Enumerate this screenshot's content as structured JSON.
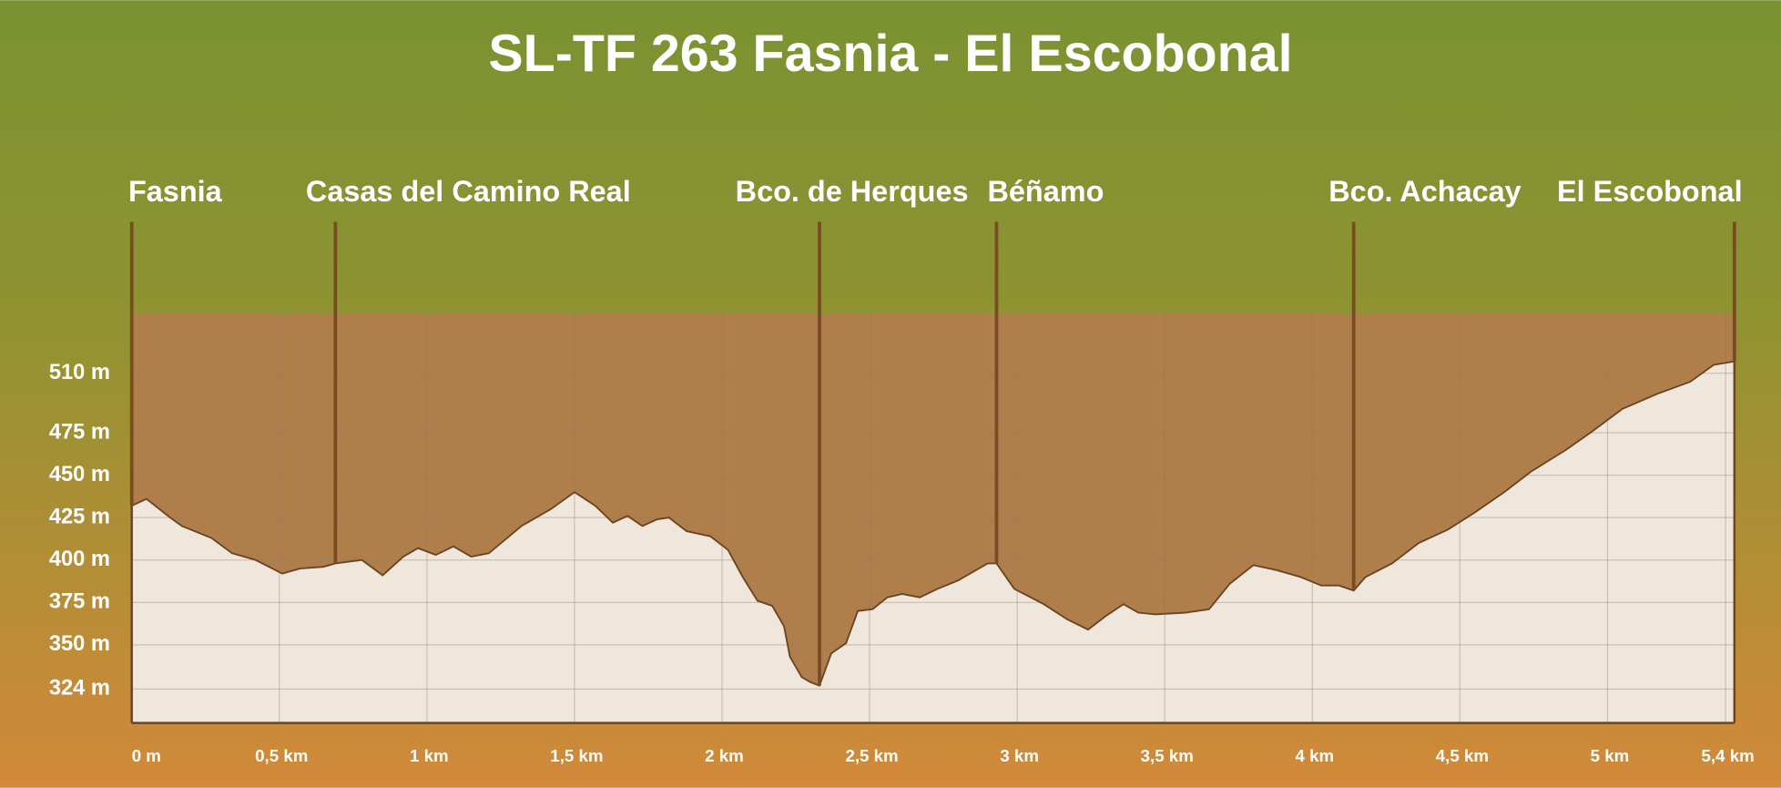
{
  "chart_data": {
    "type": "area",
    "title": "SL-TF 263 Fasnia - El Escobonal",
    "x": [
      0,
      0.05,
      0.13,
      0.17,
      0.27,
      0.34,
      0.42,
      0.51,
      0.57,
      0.65,
      0.69,
      0.78,
      0.85,
      0.92,
      0.97,
      1.03,
      1.09,
      1.15,
      1.21,
      1.32,
      1.42,
      1.5,
      1.57,
      1.63,
      1.68,
      1.73,
      1.78,
      1.82,
      1.88,
      1.96,
      2.02,
      2.07,
      2.12,
      2.17,
      2.21,
      2.23,
      2.27,
      2.3,
      2.33,
      2.37,
      2.42,
      2.46,
      2.51,
      2.56,
      2.61,
      2.67,
      2.73,
      2.8,
      2.9,
      2.93,
      2.99,
      3.09,
      3.17,
      3.24,
      3.3,
      3.36,
      3.41,
      3.47,
      3.57,
      3.65,
      3.72,
      3.8,
      3.88,
      3.96,
      4.03,
      4.09,
      4.14,
      4.18,
      4.27,
      4.36,
      4.46,
      4.55,
      4.65,
      4.74,
      4.86,
      4.95,
      5.05,
      5.17,
      5.28,
      5.36,
      5.43
    ],
    "values": [
      432,
      436,
      425,
      420,
      413,
      404,
      400,
      392,
      395,
      396,
      398,
      400,
      391,
      402,
      407,
      403,
      408,
      402,
      404,
      420,
      430,
      440,
      432,
      422,
      426,
      420,
      424,
      425,
      417,
      414,
      406,
      390,
      376,
      373,
      361,
      343,
      331,
      328,
      326,
      345,
      351,
      370,
      371,
      378,
      380,
      378,
      383,
      388,
      398,
      398,
      383,
      374,
      365,
      359,
      367,
      374,
      369,
      368,
      369,
      371,
      386,
      397,
      394,
      390,
      385,
      385,
      382,
      390,
      398,
      410,
      418,
      428,
      440,
      452,
      465,
      476,
      489,
      498,
      505,
      515,
      517
    ],
    "color": "#efe6dc",
    "line_color": "#6b4423",
    "waypoints": [
      {
        "name": "Fasnia",
        "km": 0
      },
      {
        "name": "Casas del Camino Real",
        "km": 0.69
      },
      {
        "name": "Bco. de Herques",
        "km": 2.33
      },
      {
        "name": "Béñamo",
        "km": 2.93
      },
      {
        "name": "Bco. Achacay",
        "km": 4.14
      },
      {
        "name": "El Escobonal",
        "km": 5.43
      }
    ],
    "xlim": [
      0,
      5.43
    ],
    "ylim": [
      304,
      545
    ],
    "xticks": [
      {
        "value": 0,
        "label": "0 m"
      },
      {
        "value": 0.5,
        "label": "0,5 km"
      },
      {
        "value": 1,
        "label": "1 km"
      },
      {
        "value": 1.5,
        "label": "1,5 km"
      },
      {
        "value": 2,
        "label": "2 km"
      },
      {
        "value": 2.5,
        "label": "2,5 km"
      },
      {
        "value": 3,
        "label": "3 km"
      },
      {
        "value": 3.5,
        "label": "3,5 km"
      },
      {
        "value": 4,
        "label": "4 km"
      },
      {
        "value": 4.5,
        "label": "4,5 km"
      },
      {
        "value": 5,
        "label": "5 km"
      },
      {
        "value": 5.4,
        "label": "5,4 km"
      }
    ],
    "yticks": [
      {
        "value": 324,
        "label": "324 m"
      },
      {
        "value": 350,
        "label": "350 m"
      },
      {
        "value": 375,
        "label": "375 m"
      },
      {
        "value": 400,
        "label": "400 m"
      },
      {
        "value": 425,
        "label": "425 m"
      },
      {
        "value": 450,
        "label": "450 m"
      },
      {
        "value": 475,
        "label": "475 m"
      },
      {
        "value": 510,
        "label": "510 m"
      }
    ],
    "grid": true
  }
}
